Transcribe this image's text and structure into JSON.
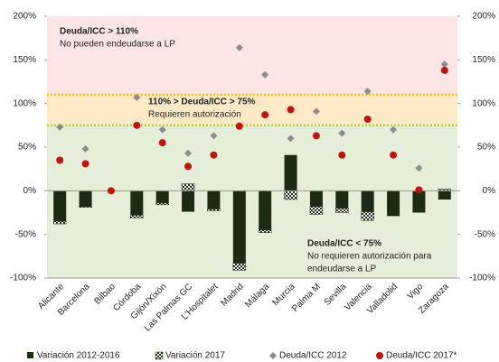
{
  "chart_data": {
    "type": "bar",
    "categories": [
      "Alicante",
      "Barcelona",
      "Bilbao",
      "Córdoba",
      "Gijón/Xixón",
      "Las Palmas GC",
      "L'Hospitalet",
      "Madrid",
      "Málaga",
      "Murcia",
      "Palma M",
      "Sevilla",
      "Valencia",
      "Valladolid",
      "Vigo",
      "Zaragoza"
    ],
    "series": [
      {
        "name": "Variación 2012-2016",
        "kind": "bar",
        "color": "#1e2b14",
        "values": [
          -35,
          -18,
          0,
          -28,
          -14,
          -24,
          -21,
          -83,
          -45,
          41,
          -18,
          -20,
          -24,
          -29,
          -25,
          -10
        ]
      },
      {
        "name": "Variación 2017",
        "kind": "bar-hatched",
        "color": "#1e2b14",
        "values": [
          -3,
          -1,
          0,
          -3,
          -2,
          8,
          -2,
          -8,
          -3,
          -10,
          -9,
          -5,
          -10,
          0,
          0,
          2
        ]
      },
      {
        "name": "Deuda/ICC 2012",
        "kind": "diamond",
        "color": "#8c8c8c",
        "values": [
          73,
          48,
          0,
          107,
          70,
          43,
          63,
          164,
          133,
          60,
          91,
          66,
          114,
          70,
          26,
          145
        ]
      },
      {
        "name": "Deuda/ICC 2017*",
        "kind": "circle",
        "color": "#c0150f",
        "values": [
          35,
          31,
          0,
          75,
          55,
          28,
          41,
          74,
          87,
          93,
          63,
          41,
          82,
          41,
          1,
          138
        ]
      }
    ],
    "ylim": [
      -100,
      200
    ],
    "yticks": [
      {
        "value": -100,
        "label": "-100%"
      },
      {
        "value": -50,
        "label": "-50%"
      },
      {
        "value": 0,
        "label": "0%"
      },
      {
        "value": 50,
        "label": "50%"
      },
      {
        "value": 100,
        "label": "100%"
      },
      {
        "value": 150,
        "label": "150%"
      },
      {
        "value": 200,
        "label": "200%"
      }
    ],
    "y2lim": [
      -100,
      200
    ],
    "y2ticks": [
      {
        "value": -100,
        "label": "-100%"
      },
      {
        "value": -50,
        "label": "-50%"
      },
      {
        "value": 0,
        "label": "0%"
      },
      {
        "value": 50,
        "label": "50%"
      },
      {
        "value": 100,
        "label": "100%"
      },
      {
        "value": 150,
        "label": "150%"
      },
      {
        "value": 200,
        "label": "200%"
      }
    ],
    "zones": [
      {
        "from": 110,
        "to": 200,
        "color": "#fbe5e4",
        "line": "#f2c40a",
        "title": "Deuda/ICC > 110%",
        "text": [
          "No pueden endeudarse a LP"
        ]
      },
      {
        "from": 75,
        "to": 110,
        "color": "#fde9c6",
        "line": "#b5d531",
        "title": "110% > Deuda/ICC > 75%",
        "text": [
          "Requieren autorización"
        ]
      },
      {
        "from": -100,
        "to": 75,
        "color": "#e5eed8",
        "title": "Deuda/ICC < 75%",
        "text": [
          "No requieren autorización para",
          "endeudarse a LP"
        ]
      }
    ]
  }
}
